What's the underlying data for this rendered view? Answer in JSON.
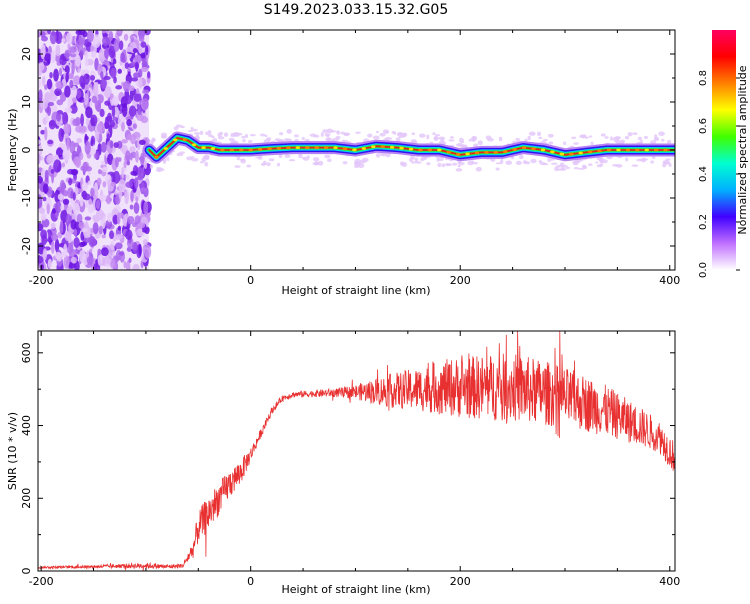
{
  "title": "S149.2023.033.15.32.G05",
  "chart_data": [
    {
      "type": "heatmap",
      "xlabel": "Height of straight line (km)",
      "ylabel": "Frequency (Hz)",
      "xlim": [
        -203,
        405
      ],
      "ylim": [
        -25,
        25
      ],
      "xticks": [
        -200,
        0,
        200,
        400
      ],
      "yticks": [
        -20,
        -10,
        0,
        10,
        20
      ],
      "colorbar": {
        "label": "Normalized spectral amplitude",
        "ticks": [
          0.0,
          0.2,
          0.4,
          0.6,
          0.8
        ],
        "range": [
          0,
          1
        ],
        "colors": [
          "#ffffff",
          "#c070ff",
          "#4000ff",
          "#00b0ff",
          "#00ffd0",
          "#40ff00",
          "#ffff00",
          "#ff8000",
          "#ff0000",
          "#ff0060"
        ]
      },
      "noise_region_x": [
        -203,
        -97
      ],
      "frequency_trace": {
        "x": [
          -97,
          -90,
          -80,
          -70,
          -60,
          -50,
          -40,
          -30,
          -20,
          0,
          20,
          40,
          60,
          80,
          100,
          120,
          140,
          160,
          180,
          200,
          220,
          240,
          260,
          280,
          300,
          320,
          340,
          360,
          380,
          405
        ],
        "y": [
          0,
          -1.5,
          0.5,
          2.5,
          2.0,
          0.5,
          0.5,
          0,
          0,
          0,
          0.3,
          0.5,
          0.5,
          0.5,
          0,
          0.8,
          0.5,
          0,
          0,
          -1.0,
          -0.5,
          -0.5,
          0.5,
          0,
          -1.0,
          -0.5,
          0,
          0,
          0,
          0
        ]
      }
    },
    {
      "type": "line",
      "xlabel": "Height of straight line (km)",
      "ylabel": "SNR (10 * v/v)",
      "xlim": [
        -203,
        405
      ],
      "ylim": [
        0,
        660
      ],
      "xticks": [
        -200,
        0,
        200,
        400
      ],
      "yticks": [
        0,
        200,
        400,
        600
      ],
      "color": "#e83030",
      "series": [
        {
          "x": [
            -203,
            -150,
            -100,
            -80,
            -65,
            -55,
            -50,
            -40,
            -30,
            -20,
            -10,
            0,
            10,
            20,
            30,
            40,
            60,
            80,
            100,
            130,
            160,
            190,
            220,
            250,
            280,
            310,
            340,
            370,
            390,
            405
          ],
          "y": [
            10,
            12,
            15,
            12,
            14,
            60,
            120,
            160,
            200,
            240,
            270,
            320,
            380,
            440,
            475,
            485,
            488,
            490,
            492,
            495,
            500,
            505,
            505,
            505,
            490,
            470,
            440,
            400,
            370,
            310
          ],
          "jitter": [
            3,
            4,
            8,
            6,
            6,
            25,
            45,
            50,
            45,
            40,
            35,
            20,
            12,
            10,
            8,
            8,
            10,
            12,
            20,
            45,
            60,
            80,
            90,
            95,
            90,
            80,
            70,
            55,
            45,
            45
          ]
        }
      ]
    }
  ]
}
